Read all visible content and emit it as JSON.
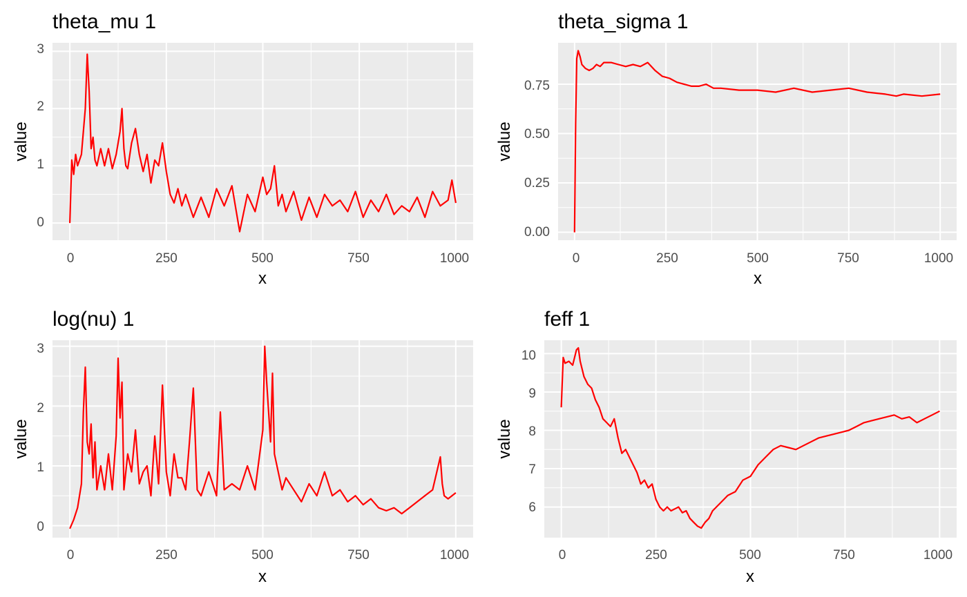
{
  "chart_data": [
    {
      "type": "line",
      "title": "theta_mu 1",
      "xlabel": "x",
      "ylabel": "value",
      "x_ticks": [
        "0",
        "250",
        "500",
        "750",
        "1000"
      ],
      "y_ticks": [
        "0",
        "1",
        "2",
        "3"
      ],
      "xlim": [
        -45,
        1045
      ],
      "ylim": [
        -0.3,
        3.15
      ],
      "series_color": "#ff0000",
      "series": [
        {
          "x": [
            0,
            5,
            10,
            15,
            20,
            30,
            40,
            45,
            50,
            55,
            60,
            65,
            70,
            80,
            90,
            100,
            110,
            120,
            130,
            135,
            140,
            145,
            150,
            160,
            170,
            180,
            190,
            200,
            210,
            220,
            230,
            240,
            250,
            260,
            270,
            280,
            290,
            300,
            320,
            340,
            360,
            380,
            400,
            420,
            440,
            460,
            480,
            500,
            510,
            520,
            530,
            540,
            550,
            560,
            580,
            600,
            620,
            640,
            660,
            680,
            700,
            720,
            740,
            760,
            780,
            800,
            820,
            840,
            860,
            880,
            900,
            920,
            940,
            960,
            980,
            990,
            1000
          ],
          "y": [
            0.0,
            1.1,
            0.85,
            1.2,
            1.0,
            1.2,
            2.0,
            2.95,
            2.3,
            1.3,
            1.5,
            1.1,
            1.0,
            1.3,
            1.0,
            1.3,
            0.95,
            1.2,
            1.6,
            2.0,
            1.3,
            1.0,
            0.95,
            1.4,
            1.65,
            1.2,
            0.9,
            1.2,
            0.7,
            1.1,
            1.0,
            1.4,
            0.9,
            0.5,
            0.35,
            0.6,
            0.3,
            0.5,
            0.1,
            0.45,
            0.1,
            0.6,
            0.3,
            0.65,
            -0.15,
            0.5,
            0.2,
            0.8,
            0.5,
            0.6,
            1.0,
            0.3,
            0.5,
            0.2,
            0.55,
            0.05,
            0.45,
            0.1,
            0.5,
            0.3,
            0.4,
            0.2,
            0.55,
            0.1,
            0.4,
            0.2,
            0.5,
            0.15,
            0.3,
            0.2,
            0.45,
            0.1,
            0.55,
            0.3,
            0.4,
            0.75,
            0.35
          ]
        }
      ]
    },
    {
      "type": "line",
      "title": "theta_sigma 1",
      "xlabel": "x",
      "ylabel": "value",
      "x_ticks": [
        "0",
        "250",
        "500",
        "750",
        "1000"
      ],
      "y_ticks": [
        "0.00",
        "0.25",
        "0.50",
        "0.75"
      ],
      "xlim": [
        -45,
        1045
      ],
      "ylim": [
        -0.04,
        0.96
      ],
      "series_color": "#ff0000",
      "series": [
        {
          "x": [
            0,
            3,
            6,
            10,
            15,
            20,
            30,
            40,
            50,
            60,
            70,
            80,
            100,
            120,
            140,
            160,
            180,
            200,
            220,
            240,
            260,
            280,
            300,
            320,
            340,
            360,
            380,
            400,
            450,
            500,
            550,
            600,
            650,
            700,
            750,
            800,
            850,
            880,
            900,
            950,
            1000
          ],
          "y": [
            0.0,
            0.55,
            0.88,
            0.92,
            0.89,
            0.85,
            0.83,
            0.82,
            0.83,
            0.85,
            0.84,
            0.86,
            0.86,
            0.85,
            0.84,
            0.85,
            0.84,
            0.86,
            0.82,
            0.79,
            0.78,
            0.76,
            0.75,
            0.74,
            0.74,
            0.75,
            0.73,
            0.73,
            0.72,
            0.72,
            0.71,
            0.73,
            0.71,
            0.72,
            0.73,
            0.71,
            0.7,
            0.69,
            0.7,
            0.69,
            0.7
          ]
        }
      ]
    },
    {
      "type": "line",
      "title": "log(nu) 1",
      "xlabel": "x",
      "ylabel": "value",
      "x_ticks": [
        "0",
        "250",
        "500",
        "750",
        "1000"
      ],
      "y_ticks": [
        "0",
        "1",
        "2",
        "3"
      ],
      "xlim": [
        -45,
        1045
      ],
      "ylim": [
        -0.2,
        3.1
      ],
      "series_color": "#ff0000",
      "series": [
        {
          "x": [
            0,
            10,
            20,
            30,
            35,
            40,
            45,
            50,
            55,
            60,
            65,
            70,
            80,
            90,
            100,
            110,
            120,
            125,
            130,
            135,
            140,
            150,
            160,
            170,
            180,
            190,
            200,
            210,
            220,
            230,
            240,
            250,
            260,
            270,
            280,
            290,
            300,
            310,
            320,
            330,
            340,
            360,
            380,
            390,
            400,
            420,
            440,
            460,
            480,
            500,
            505,
            510,
            520,
            525,
            530,
            540,
            550,
            560,
            580,
            600,
            620,
            640,
            660,
            680,
            700,
            720,
            740,
            760,
            780,
            800,
            820,
            840,
            860,
            880,
            900,
            920,
            940,
            960,
            965,
            970,
            980,
            1000
          ],
          "y": [
            -0.05,
            0.1,
            0.3,
            0.7,
            1.9,
            2.65,
            1.4,
            1.2,
            1.7,
            0.8,
            1.4,
            0.6,
            1.0,
            0.6,
            1.2,
            0.6,
            1.5,
            2.8,
            1.8,
            2.4,
            0.6,
            1.2,
            0.9,
            1.6,
            0.7,
            0.9,
            1.0,
            0.5,
            1.5,
            0.7,
            2.35,
            0.9,
            0.5,
            1.2,
            0.8,
            0.8,
            0.6,
            1.4,
            2.3,
            0.6,
            0.5,
            0.9,
            0.5,
            1.9,
            0.6,
            0.7,
            0.6,
            1.0,
            0.6,
            1.6,
            3.0,
            2.4,
            1.4,
            2.55,
            1.2,
            0.9,
            0.6,
            0.8,
            0.6,
            0.4,
            0.7,
            0.5,
            0.9,
            0.5,
            0.6,
            0.4,
            0.5,
            0.35,
            0.45,
            0.3,
            0.25,
            0.3,
            0.2,
            0.3,
            0.4,
            0.5,
            0.6,
            1.15,
            0.7,
            0.5,
            0.45,
            0.55
          ]
        }
      ]
    },
    {
      "type": "line",
      "title": "feff 1",
      "xlabel": "x",
      "ylabel": "value",
      "x_ticks": [
        "0",
        "250",
        "500",
        "750",
        "1000"
      ],
      "y_ticks": [
        "6",
        "7",
        "8",
        "9",
        "10"
      ],
      "xlim": [
        -45,
        1045
      ],
      "ylim": [
        5.2,
        10.35
      ],
      "series_color": "#ff0000",
      "series": [
        {
          "x": [
            0,
            5,
            10,
            20,
            30,
            40,
            45,
            50,
            60,
            70,
            80,
            90,
            100,
            110,
            120,
            130,
            140,
            150,
            160,
            170,
            180,
            190,
            200,
            210,
            220,
            230,
            240,
            250,
            260,
            270,
            280,
            290,
            300,
            310,
            320,
            330,
            340,
            350,
            360,
            370,
            380,
            390,
            400,
            420,
            440,
            460,
            480,
            500,
            520,
            540,
            560,
            580,
            600,
            620,
            640,
            660,
            680,
            700,
            720,
            740,
            760,
            780,
            800,
            820,
            840,
            860,
            880,
            900,
            920,
            940,
            960,
            980,
            1000
          ],
          "y": [
            8.6,
            9.9,
            9.75,
            9.8,
            9.7,
            10.1,
            10.15,
            9.8,
            9.4,
            9.2,
            9.1,
            8.8,
            8.6,
            8.3,
            8.2,
            8.1,
            8.3,
            7.8,
            7.4,
            7.5,
            7.3,
            7.1,
            6.9,
            6.6,
            6.7,
            6.5,
            6.6,
            6.2,
            6.0,
            5.9,
            6.0,
            5.9,
            5.95,
            6.0,
            5.85,
            5.9,
            5.7,
            5.6,
            5.5,
            5.45,
            5.6,
            5.7,
            5.9,
            6.1,
            6.3,
            6.4,
            6.7,
            6.8,
            7.1,
            7.3,
            7.5,
            7.6,
            7.55,
            7.5,
            7.6,
            7.7,
            7.8,
            7.85,
            7.9,
            7.95,
            8.0,
            8.1,
            8.2,
            8.25,
            8.3,
            8.35,
            8.4,
            8.3,
            8.35,
            8.2,
            8.3,
            8.4,
            8.5
          ]
        }
      ]
    }
  ]
}
